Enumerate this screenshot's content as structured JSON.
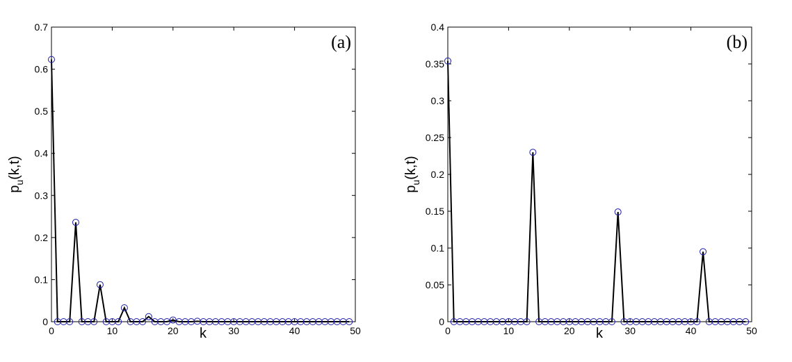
{
  "chart_data": [
    {
      "type": "line",
      "panel_label": "(a)",
      "xlabel": "k",
      "ylabel_main": "p",
      "ylabel_sub": "u",
      "ylabel_rest": "(k,t)",
      "xlim": [
        0,
        50
      ],
      "ylim": [
        0,
        0.7
      ],
      "xticks": [
        "0",
        "10",
        "20",
        "30",
        "40",
        "50"
      ],
      "yticks": [
        "0",
        "0.1",
        "0.2",
        "0.3",
        "0.4",
        "0.5",
        "0.6",
        "0.7"
      ],
      "grid": false,
      "line_color": "#000000",
      "marker_color": "#1a1aa8",
      "x": [
        0,
        1,
        2,
        3,
        4,
        5,
        6,
        7,
        8,
        9,
        10,
        11,
        12,
        13,
        14,
        15,
        16,
        17,
        18,
        19,
        20,
        21,
        22,
        23,
        24,
        25,
        26,
        27,
        28,
        29,
        30,
        31,
        32,
        33,
        34,
        35,
        36,
        37,
        38,
        39,
        40,
        41,
        42,
        43,
        44,
        45,
        46,
        47,
        48,
        49
      ],
      "values": [
        0.623,
        0,
        0,
        0,
        0.236,
        0,
        0,
        0,
        0.088,
        0,
        0,
        0,
        0.033,
        0,
        0,
        0,
        0.012,
        0,
        0,
        0,
        0.004,
        0,
        0,
        0,
        0.001,
        0,
        0,
        0,
        0,
        0,
        0,
        0,
        0,
        0,
        0,
        0,
        0,
        0,
        0,
        0,
        0,
        0,
        0,
        0,
        0,
        0,
        0,
        0,
        0,
        0
      ]
    },
    {
      "type": "line",
      "panel_label": "(b)",
      "xlabel": "k",
      "ylabel_main": "p",
      "ylabel_sub": "u",
      "ylabel_rest": "(k,t)",
      "xlim": [
        0,
        50
      ],
      "ylim": [
        0,
        0.4
      ],
      "xticks": [
        "0",
        "10",
        "20",
        "30",
        "40",
        "50"
      ],
      "yticks": [
        "0",
        "0.05",
        "0.1",
        "0.15",
        "0.2",
        "0.25",
        "0.3",
        "0.35",
        "0.4"
      ],
      "grid": false,
      "line_color": "#000000",
      "marker_color": "#1a1aa8",
      "x": [
        0,
        1,
        2,
        3,
        4,
        5,
        6,
        7,
        8,
        9,
        10,
        11,
        12,
        13,
        14,
        15,
        16,
        17,
        18,
        19,
        20,
        21,
        22,
        23,
        24,
        25,
        26,
        27,
        28,
        29,
        30,
        31,
        32,
        33,
        34,
        35,
        36,
        37,
        38,
        39,
        40,
        41,
        42,
        43,
        44,
        45,
        46,
        47,
        48,
        49
      ],
      "values": [
        0.354,
        0,
        0,
        0,
        0,
        0,
        0,
        0,
        0,
        0,
        0,
        0,
        0,
        0,
        0.23,
        0,
        0,
        0,
        0,
        0,
        0,
        0,
        0,
        0,
        0,
        0,
        0,
        0,
        0.149,
        0,
        0,
        0,
        0,
        0,
        0,
        0,
        0,
        0,
        0,
        0,
        0,
        0,
        0.095,
        0,
        0,
        0,
        0,
        0,
        0,
        0
      ]
    }
  ]
}
